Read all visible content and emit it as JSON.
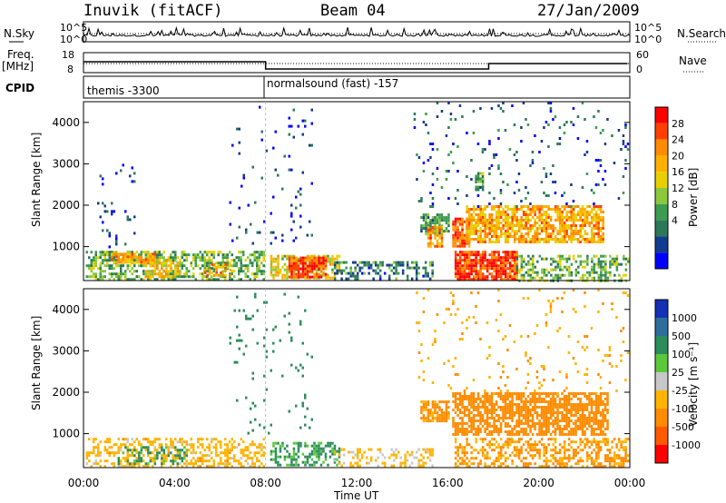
{
  "header": {
    "station": "Inuvik (fitACF)",
    "beam": "Beam 04",
    "date": "27/Jan/2009"
  },
  "side_labels": {
    "nsky": "N.Sky",
    "nsearch": "N.Search",
    "freq": "Freq.",
    "freq_unit": "[MHz]",
    "nave": "Nave",
    "cpid": "CPID"
  },
  "noise_axis": {
    "top": "10^5",
    "bottom": "10^0",
    "right_top": "10^5",
    "right_bottom": "10^0"
  },
  "freq_axis": {
    "left_ticks": [
      "18",
      "8"
    ],
    "right_ticks": [
      "60",
      "0"
    ]
  },
  "cpid": [
    {
      "start_hour": 0,
      "label": "themis -3300"
    },
    {
      "start_hour": 8,
      "label": "normalsound (fast) -157"
    }
  ],
  "chart_data": [
    {
      "type": "heatmap",
      "panel": "power",
      "ylabel": "Slant Range [km]",
      "xlabel": "",
      "ylim": [
        180,
        4500
      ],
      "yticks": [
        "1000",
        "2000",
        "3000",
        "4000"
      ],
      "xticks": [
        "00:00",
        "04:00",
        "08:00",
        "12:00",
        "16:00",
        "20:00",
        "00:00"
      ],
      "colorbar": {
        "label": "Power [dB]",
        "ticks": [
          "28",
          "24",
          "20",
          "16",
          "12",
          "8",
          "4"
        ],
        "colors": [
          "#ff0000",
          "#ff4000",
          "#ff8c00",
          "#ffb000",
          "#e8d000",
          "#8cc83c",
          "#3c9c50",
          "#2c7858",
          "#143c8c",
          "#0000ff"
        ]
      },
      "regions": [
        {
          "t0": 0.1,
          "t1": 7.9,
          "r0": 200,
          "r1": 900,
          "value": 14,
          "density": 0.55
        },
        {
          "t0": 1.2,
          "t1": 3.2,
          "r0": 600,
          "r1": 850,
          "value": 22,
          "density": 0.7
        },
        {
          "t0": 2.6,
          "t1": 4.2,
          "r0": 280,
          "r1": 700,
          "value": 20,
          "density": 0.65
        },
        {
          "t0": 5.3,
          "t1": 6.4,
          "r0": 300,
          "r1": 600,
          "value": 22,
          "density": 0.55
        },
        {
          "t0": 8.2,
          "t1": 11.2,
          "r0": 220,
          "r1": 800,
          "value": 18,
          "density": 0.6
        },
        {
          "t0": 9.0,
          "t1": 10.6,
          "r0": 250,
          "r1": 760,
          "value": 27,
          "density": 0.85
        },
        {
          "t0": 11.0,
          "t1": 15.3,
          "r0": 200,
          "r1": 650,
          "value": 10,
          "density": 0.45
        },
        {
          "t0": 14.8,
          "t1": 16.0,
          "r0": 1300,
          "r1": 1800,
          "value": 12,
          "density": 0.8
        },
        {
          "t0": 15.1,
          "t1": 15.7,
          "r0": 1000,
          "r1": 1500,
          "value": 24,
          "density": 0.75
        },
        {
          "t0": 16.2,
          "t1": 16.9,
          "r0": 1000,
          "r1": 1700,
          "value": 26,
          "density": 0.8
        },
        {
          "t0": 16.8,
          "t1": 22.8,
          "r0": 1100,
          "r1": 2000,
          "value": 22,
          "density": 0.72
        },
        {
          "t0": 16.3,
          "t1": 19.0,
          "r0": 200,
          "r1": 900,
          "value": 28,
          "density": 0.85
        },
        {
          "t0": 19.0,
          "t1": 23.9,
          "r0": 200,
          "r1": 800,
          "value": 14,
          "density": 0.45
        },
        {
          "t0": 17.2,
          "t1": 17.5,
          "r0": 2400,
          "r1": 2800,
          "value": 14,
          "density": 0.7
        },
        {
          "t0": 6.4,
          "t1": 10.0,
          "r0": 1000,
          "r1": 4400,
          "value": 6,
          "density": 0.04
        },
        {
          "t0": 14.5,
          "t1": 23.9,
          "r0": 2000,
          "r1": 4500,
          "value": 8,
          "density": 0.05
        },
        {
          "t0": 0.5,
          "t1": 2.2,
          "r0": 1000,
          "r1": 3000,
          "value": 6,
          "density": 0.05
        }
      ]
    },
    {
      "type": "heatmap",
      "panel": "velocity",
      "ylabel": "Slant Range [km]",
      "xlabel": "Time UT",
      "ylim": [
        180,
        4500
      ],
      "yticks": [
        "1000",
        "2000",
        "3000",
        "4000"
      ],
      "xticks": [
        "00:00",
        "04:00",
        "08:00",
        "12:00",
        "16:00",
        "20:00",
        "00:00"
      ],
      "colorbar": {
        "label": "Velocity [m s⁻¹]",
        "ticks": [
          "1000",
          "500",
          "100",
          "25",
          "-25",
          "-100",
          "-500",
          "-1000"
        ],
        "colors": [
          "#1430b4",
          "#2e6e9c",
          "#2c8c5c",
          "#5cc83c",
          "#c8c8c8",
          "#ffb400",
          "#ff8c00",
          "#ff5a00",
          "#ff0000"
        ]
      },
      "regions": [
        {
          "t0": 0.1,
          "t1": 7.9,
          "r0": 200,
          "r1": 900,
          "value": -60,
          "density": 0.45
        },
        {
          "t0": 1.5,
          "t1": 4.5,
          "r0": 300,
          "r1": 700,
          "value": 150,
          "density": 0.35
        },
        {
          "t0": 8.2,
          "t1": 11.2,
          "r0": 220,
          "r1": 800,
          "value": 120,
          "density": 0.45
        },
        {
          "t0": 11.0,
          "t1": 15.3,
          "r0": 200,
          "r1": 650,
          "value": -40,
          "density": 0.35
        },
        {
          "t0": 14.8,
          "t1": 16.0,
          "r0": 1300,
          "r1": 1800,
          "value": -150,
          "density": 0.7
        },
        {
          "t0": 16.2,
          "t1": 23.0,
          "r0": 1000,
          "r1": 2000,
          "value": -300,
          "density": 0.7
        },
        {
          "t0": 16.3,
          "t1": 23.9,
          "r0": 200,
          "r1": 900,
          "value": -120,
          "density": 0.5
        },
        {
          "t0": 6.4,
          "t1": 10.0,
          "r0": 1000,
          "r1": 4400,
          "value": 300,
          "density": 0.04
        },
        {
          "t0": 14.5,
          "t1": 23.9,
          "r0": 2000,
          "r1": 4500,
          "value": -80,
          "density": 0.04
        }
      ]
    }
  ]
}
